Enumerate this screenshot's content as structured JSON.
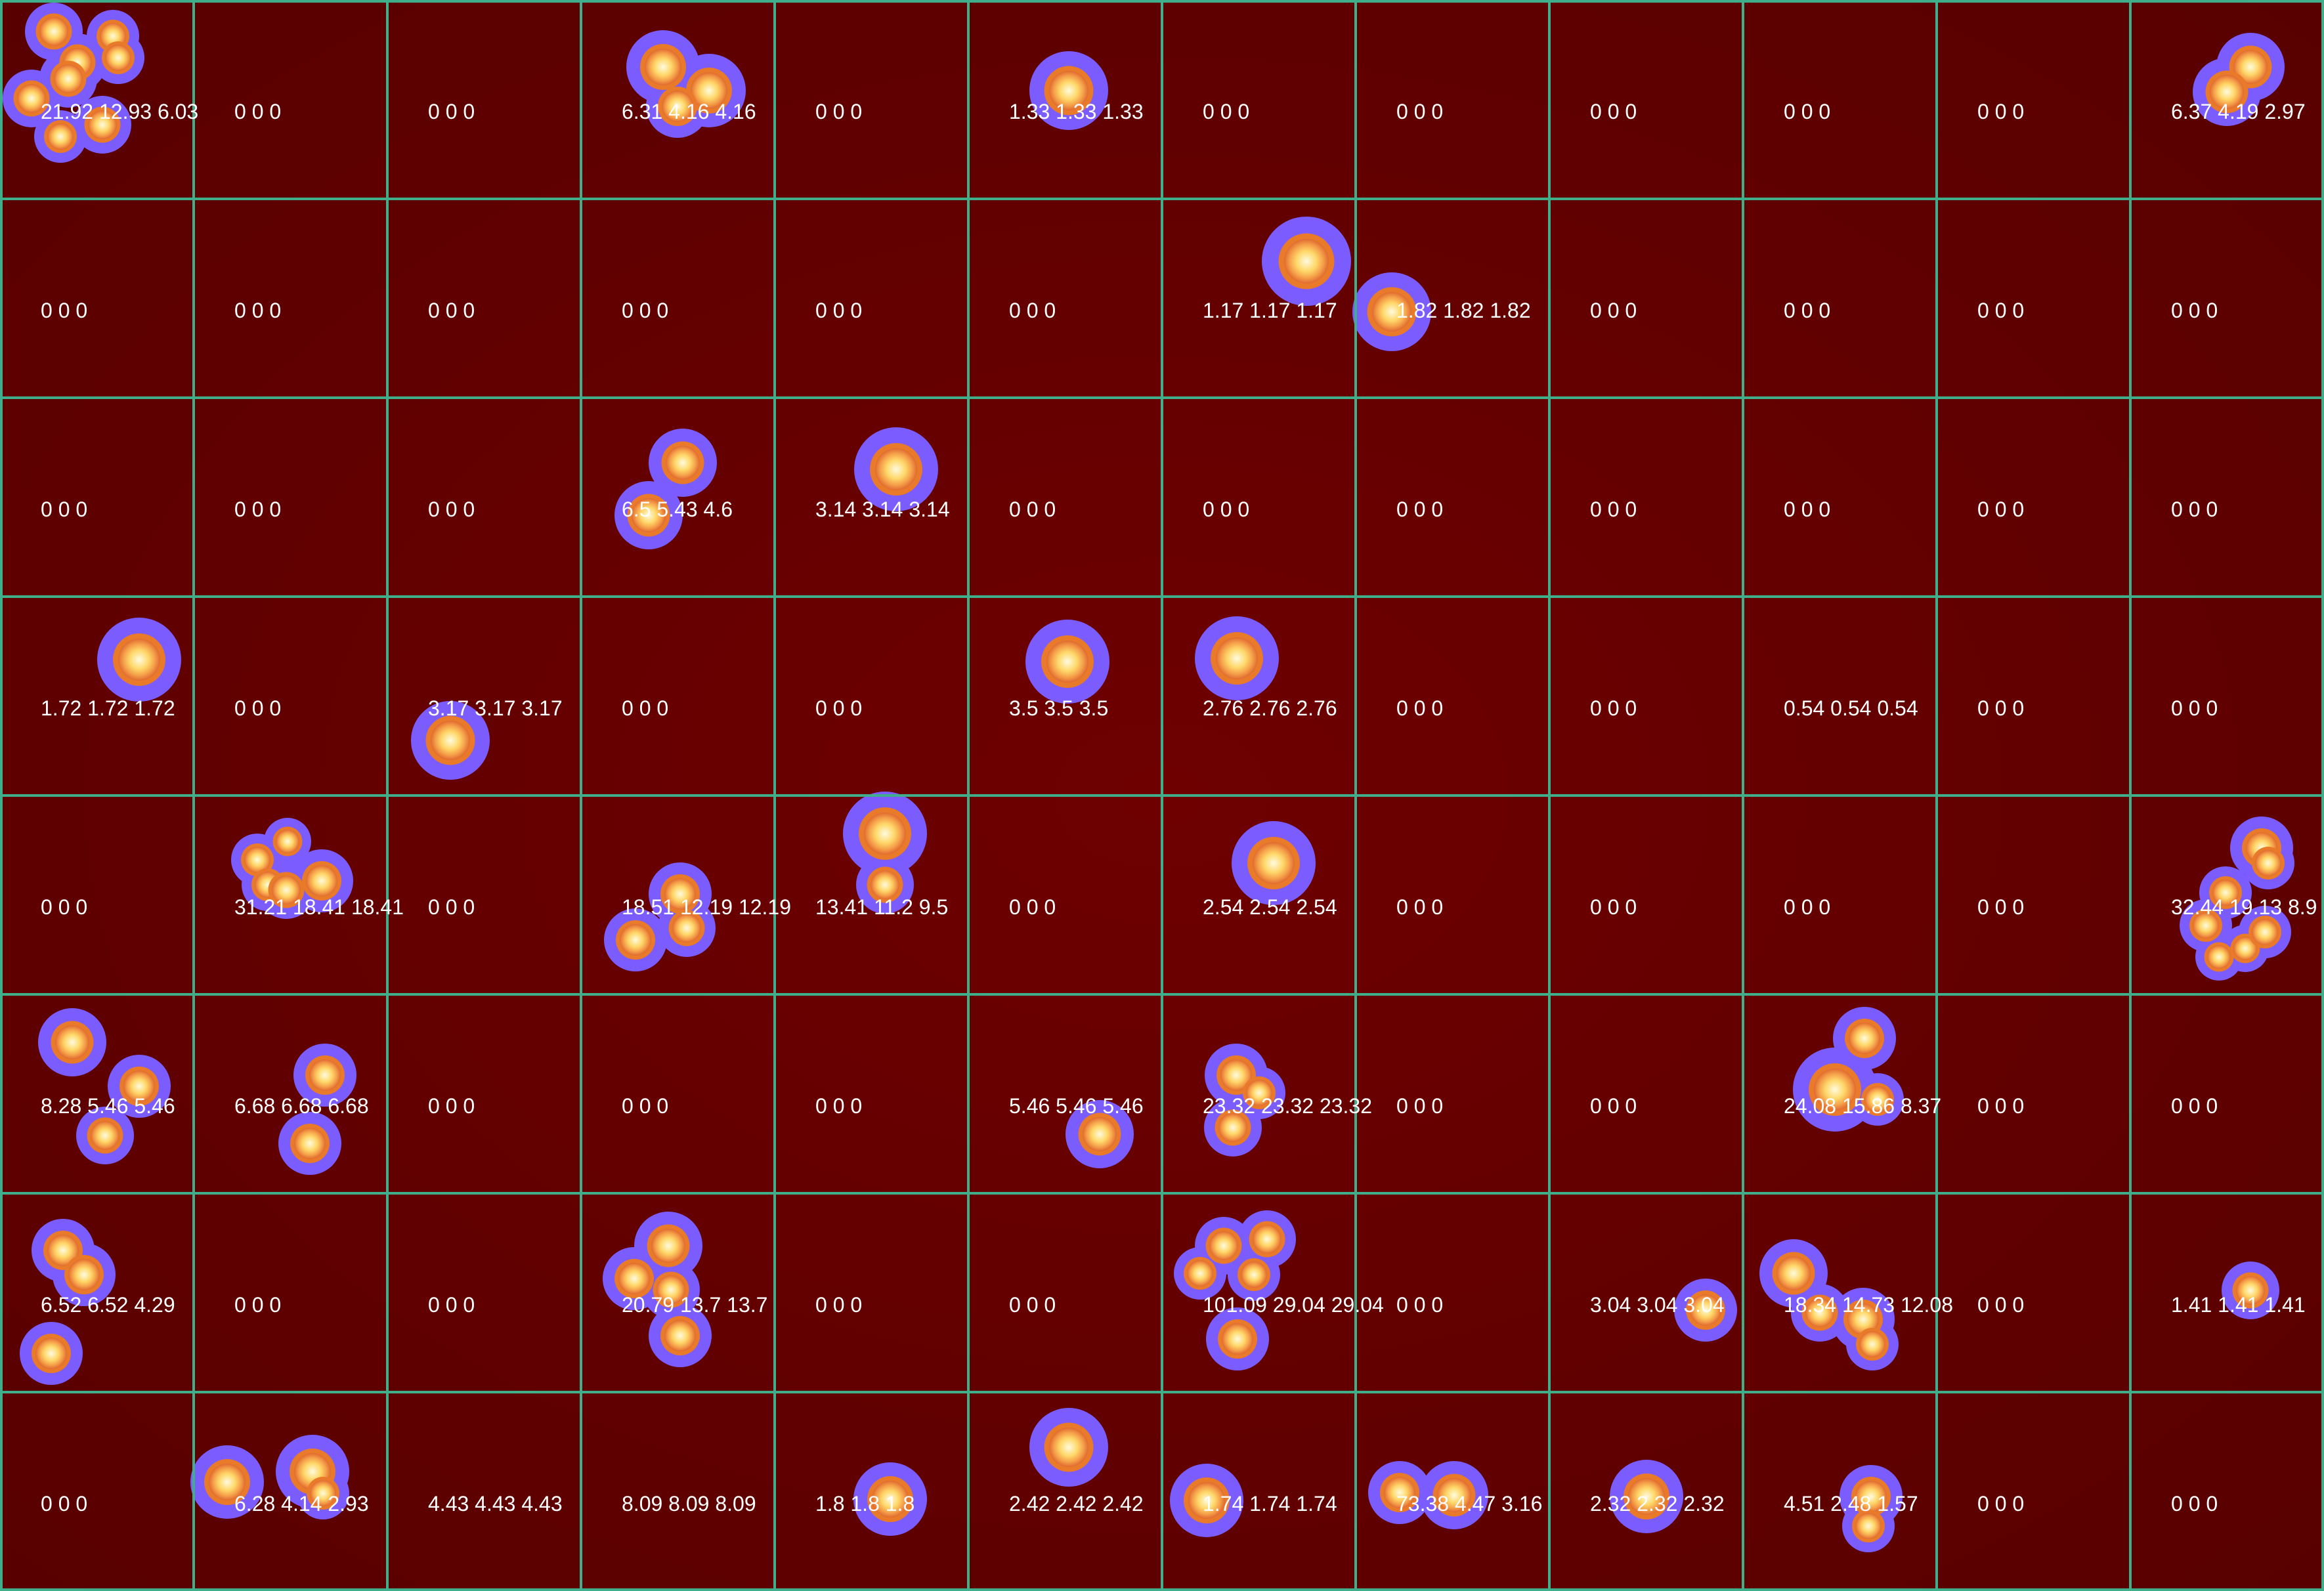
{
  "image": {
    "colors": {
      "background": "#650000",
      "grid_line": "#3fae8a",
      "halo": "#7a5cff",
      "glow": "#e87a2a",
      "core": "#ffe07a",
      "label": "#ffffff"
    },
    "grid": {
      "rows": 8,
      "cols": 12
    },
    "cells": [
      [
        "21.92 12.93 6.03",
        "0 0 0",
        "0 0 0",
        "6.31 4.16 4.16",
        "0 0 0",
        "1.33 1.33 1.33",
        "0 0 0",
        "0 0 0",
        "0 0 0",
        "0 0 0",
        "0 0 0",
        "6.37 4.19 2.97"
      ],
      [
        "0 0 0",
        "0 0 0",
        "0 0 0",
        "0 0 0",
        "0 0 0",
        "0 0 0",
        "1.17 1.17 1.17",
        "1.82 1.82 1.82",
        "0 0 0",
        "0 0 0",
        "0 0 0",
        "0 0 0"
      ],
      [
        "0 0 0",
        "0 0 0",
        "0 0 0",
        "6.5 5.43 4.6",
        "3.14 3.14 3.14",
        "0 0 0",
        "0 0 0",
        "0 0 0",
        "0 0 0",
        "0 0 0",
        "0 0 0",
        "0 0 0"
      ],
      [
        "1.72 1.72 1.72",
        "0 0 0",
        "3.17 3.17 3.17",
        "0 0 0",
        "0 0 0",
        "3.5 3.5 3.5",
        "2.76 2.76 2.76",
        "0 0 0",
        "0 0 0",
        "0.54 0.54 0.54",
        "0 0 0",
        "0 0 0"
      ],
      [
        "0 0 0",
        "31.21 18.41 18.41",
        "0 0 0",
        "18.51 12.19 12.19",
        "13.41 11.2 9.5",
        "0 0 0",
        "2.54 2.54 2.54",
        "0 0 0",
        "0 0 0",
        "0 0 0",
        "0 0 0",
        "32.44 19.13 8.9"
      ],
      [
        "8.28 5.46 5.46",
        "6.68 6.68 6.68",
        "0 0 0",
        "0 0 0",
        "0 0 0",
        "5.46 5.46 5.46",
        "23.32 23.32 23.32",
        "0 0 0",
        "0 0 0",
        "24.08 15.86 8.37",
        "0 0 0",
        "0 0 0"
      ],
      [
        "6.52 6.52 4.29",
        "0 0 0",
        "0 0 0",
        "20.79 13.7 13.7",
        "0 0 0",
        "0 0 0",
        "101.09 29.04 29.04",
        "0 0 0",
        "3.04 3.04 3.04",
        "18.34 14.73 12.08",
        "0 0 0",
        "1.41 1.41 1.41"
      ],
      [
        "0 0 0",
        "6.28 4.14 2.93",
        "4.43 4.43 4.43",
        "8.09 8.09 8.09",
        "1.8 1.8 1.8",
        "2.42 2.42 2.42",
        "1.74 1.74 1.74",
        "73.38 4.47 3.16",
        "2.32 2.32 2.32",
        "4.51 2.48 1.57",
        "0 0 0",
        "0 0 0"
      ]
    ]
  }
}
